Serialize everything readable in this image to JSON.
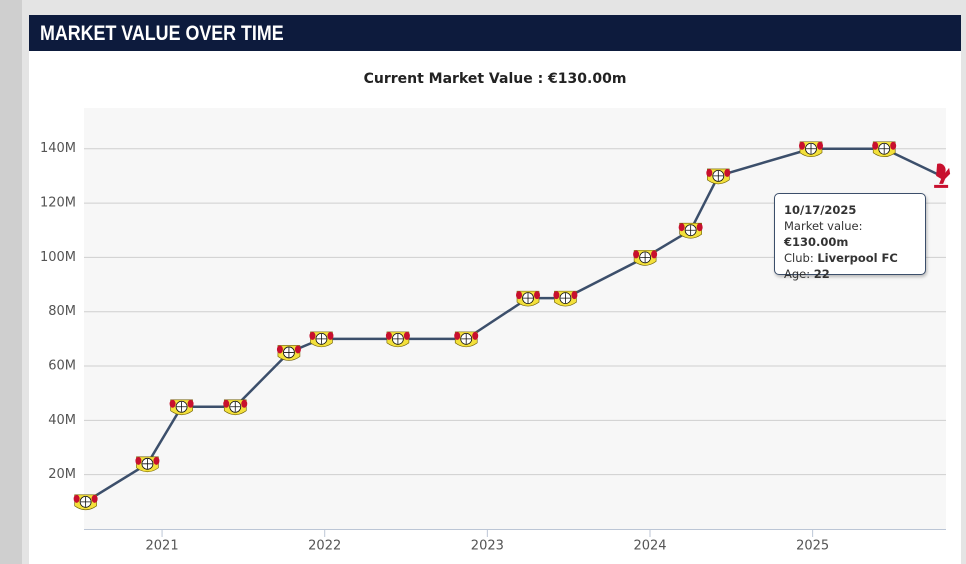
{
  "header": {
    "title": "MARKET VALUE OVER TIME"
  },
  "chart_data": {
    "type": "line",
    "subtitle": "Current Market Value : €130.00m",
    "x": [
      2020.53,
      2020.91,
      2021.12,
      2021.45,
      2021.78,
      2021.98,
      2022.45,
      2022.87,
      2023.25,
      2023.48,
      2023.97,
      2024.25,
      2024.42,
      2024.99,
      2025.44,
      2025.79
    ],
    "series": [
      {
        "color": "#3c4f6b",
        "values": [
          10,
          24,
          45,
          45,
          65,
          70,
          70,
          70,
          85,
          85,
          100,
          110,
          130,
          140,
          140,
          130
        ]
      }
    ],
    "xlim": [
      2020.52,
      2025.82
    ],
    "xticks": [
      2021,
      2022,
      2023,
      2024,
      2025
    ],
    "ylim": [
      0,
      155
    ],
    "yticks": [
      {
        "value": 20,
        "label": "20M"
      },
      {
        "value": 40,
        "label": "40M"
      },
      {
        "value": 60,
        "label": "60M"
      },
      {
        "value": 80,
        "label": "80M"
      },
      {
        "value": 100,
        "label": "100M"
      },
      {
        "value": 120,
        "label": "120M"
      },
      {
        "value": 140,
        "label": "140M"
      }
    ],
    "grid": true,
    "tooltip": {
      "date": "10/17/2025",
      "lines": [
        {
          "label": "Market value: ",
          "value": "€130.00m"
        },
        {
          "label": "Club: ",
          "value": "Liverpool FC"
        },
        {
          "label": "Age: ",
          "value": "22"
        }
      ]
    }
  }
}
